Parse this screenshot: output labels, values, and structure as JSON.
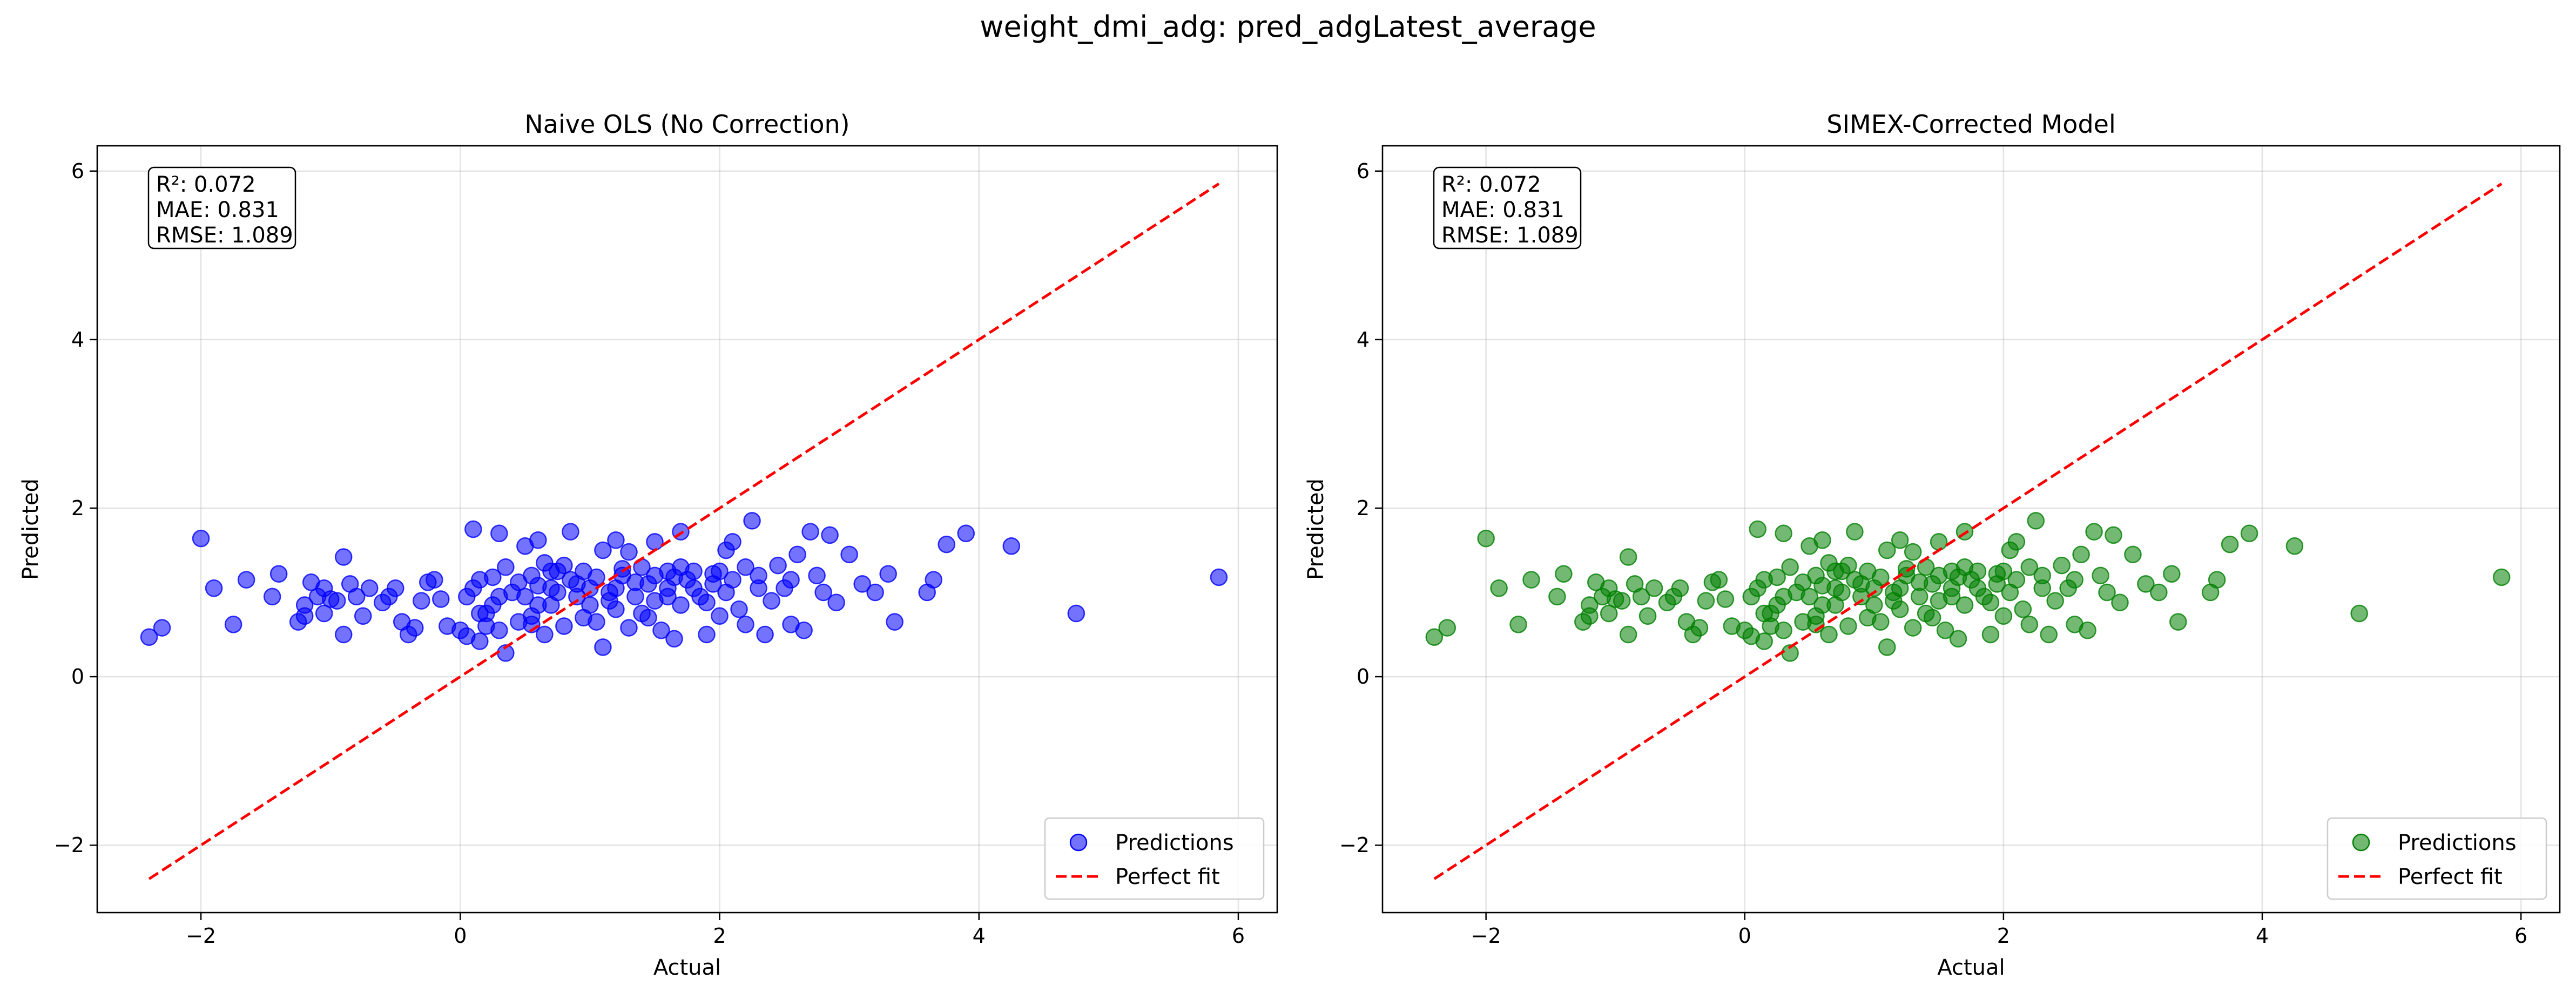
{
  "figure": {
    "suptitle": "weight_dmi_adg: pred_adgLatest_average"
  },
  "chart_data": [
    {
      "type": "scatter",
      "title": "Naive OLS (No Correction)",
      "xlabel": "Actual",
      "ylabel": "Predicted",
      "xlim": [
        -2.8,
        6.3
      ],
      "ylim": [
        -2.8,
        6.3
      ],
      "xticks": [
        -2,
        0,
        2,
        4,
        6
      ],
      "yticks": [
        -2,
        0,
        2,
        4,
        6
      ],
      "grid": true,
      "legend_position": "lower-right",
      "stats": [
        "R²: 0.072",
        "MAE: 0.831",
        "RMSE: 1.089"
      ],
      "series": [
        {
          "name": "Predictions",
          "kind": "points",
          "color": "#0000ff",
          "opacity": 0.55,
          "points": "@shared_points"
        },
        {
          "name": "Perfect fit",
          "kind": "line",
          "style": "dashed",
          "color": "#ff0000",
          "x": [
            -2.4,
            5.85
          ],
          "y": [
            -2.4,
            5.85
          ]
        }
      ]
    },
    {
      "type": "scatter",
      "title": "SIMEX-Corrected Model",
      "xlabel": "Actual",
      "ylabel": "Predicted",
      "xlim": [
        -2.8,
        6.3
      ],
      "ylim": [
        -2.8,
        6.3
      ],
      "xticks": [
        -2,
        0,
        2,
        4,
        6
      ],
      "yticks": [
        -2,
        0,
        2,
        4,
        6
      ],
      "grid": true,
      "legend_position": "lower-right",
      "stats": [
        "R²: 0.072",
        "MAE: 0.831",
        "RMSE: 1.089"
      ],
      "series": [
        {
          "name": "Predictions",
          "kind": "points",
          "color": "#008000",
          "opacity": 0.55,
          "points": "@shared_points"
        },
        {
          "name": "Perfect fit",
          "kind": "line",
          "style": "dashed",
          "color": "#ff0000",
          "x": [
            -2.4,
            5.85
          ],
          "y": [
            -2.4,
            5.85
          ]
        }
      ]
    }
  ],
  "shared_points": [
    [
      -2.4,
      0.47
    ],
    [
      -2.3,
      0.58
    ],
    [
      -2.0,
      1.64
    ],
    [
      -1.9,
      1.05
    ],
    [
      -1.75,
      0.62
    ],
    [
      -1.65,
      1.15
    ],
    [
      -1.45,
      0.95
    ],
    [
      -1.4,
      1.22
    ],
    [
      -1.25,
      0.65
    ],
    [
      -1.2,
      0.72
    ],
    [
      -1.2,
      0.85
    ],
    [
      -1.15,
      1.12
    ],
    [
      -1.1,
      0.95
    ],
    [
      -1.05,
      1.05
    ],
    [
      -1.05,
      0.75
    ],
    [
      -1.0,
      0.92
    ],
    [
      -0.95,
      0.9
    ],
    [
      -0.9,
      1.42
    ],
    [
      -0.9,
      0.5
    ],
    [
      -0.85,
      1.1
    ],
    [
      -0.8,
      0.95
    ],
    [
      -0.75,
      0.72
    ],
    [
      -0.7,
      1.05
    ],
    [
      -0.6,
      0.88
    ],
    [
      -0.55,
      0.95
    ],
    [
      -0.5,
      1.05
    ],
    [
      -0.45,
      0.65
    ],
    [
      -0.4,
      0.5
    ],
    [
      -0.35,
      0.58
    ],
    [
      -0.3,
      0.9
    ],
    [
      -0.25,
      1.12
    ],
    [
      -0.2,
      1.15
    ],
    [
      -0.15,
      0.92
    ],
    [
      -0.1,
      0.6
    ],
    [
      0.0,
      0.55
    ],
    [
      0.05,
      0.48
    ],
    [
      0.05,
      0.95
    ],
    [
      0.1,
      1.75
    ],
    [
      0.1,
      1.05
    ],
    [
      0.15,
      0.75
    ],
    [
      0.15,
      0.42
    ],
    [
      0.2,
      0.6
    ],
    [
      0.25,
      1.18
    ],
    [
      0.25,
      0.85
    ],
    [
      0.3,
      1.7
    ],
    [
      0.3,
      0.55
    ],
    [
      0.35,
      0.28
    ],
    [
      0.4,
      1.0
    ],
    [
      0.45,
      0.65
    ],
    [
      0.5,
      1.55
    ],
    [
      0.5,
      0.95
    ],
    [
      0.55,
      1.2
    ],
    [
      0.55,
      0.72
    ],
    [
      0.6,
      1.62
    ],
    [
      0.6,
      0.85
    ],
    [
      0.65,
      1.35
    ],
    [
      0.65,
      0.5
    ],
    [
      0.7,
      1.05
    ],
    [
      0.7,
      0.85
    ],
    [
      0.75,
      1.25
    ],
    [
      0.8,
      0.6
    ],
    [
      0.85,
      1.72
    ],
    [
      0.85,
      1.15
    ],
    [
      0.9,
      0.95
    ],
    [
      0.95,
      1.25
    ],
    [
      1.0,
      0.85
    ],
    [
      1.0,
      1.05
    ],
    [
      1.05,
      0.65
    ],
    [
      1.1,
      0.35
    ],
    [
      1.1,
      1.5
    ],
    [
      1.15,
      1.0
    ],
    [
      1.2,
      1.62
    ],
    [
      1.2,
      0.8
    ],
    [
      1.25,
      1.2
    ],
    [
      1.3,
      1.48
    ],
    [
      1.3,
      0.58
    ],
    [
      1.35,
      0.95
    ],
    [
      1.4,
      1.3
    ],
    [
      1.4,
      0.75
    ],
    [
      1.45,
      1.1
    ],
    [
      1.5,
      1.6
    ],
    [
      1.5,
      0.9
    ],
    [
      1.55,
      0.55
    ],
    [
      1.6,
      1.25
    ],
    [
      1.6,
      1.05
    ],
    [
      1.65,
      0.45
    ],
    [
      1.7,
      1.72
    ],
    [
      1.7,
      0.85
    ],
    [
      1.75,
      1.15
    ],
    [
      1.8,
      1.25
    ],
    [
      1.85,
      0.95
    ],
    [
      1.9,
      0.5
    ],
    [
      1.95,
      1.1
    ],
    [
      2.0,
      1.25
    ],
    [
      2.0,
      0.72
    ],
    [
      2.05,
      1.5
    ],
    [
      2.1,
      1.6
    ],
    [
      2.15,
      0.8
    ],
    [
      2.2,
      0.62
    ],
    [
      2.25,
      1.85
    ],
    [
      2.3,
      1.2
    ],
    [
      2.35,
      0.5
    ],
    [
      2.4,
      0.9
    ],
    [
      2.45,
      1.32
    ],
    [
      2.5,
      1.05
    ],
    [
      2.55,
      0.62
    ],
    [
      2.6,
      1.45
    ],
    [
      2.65,
      0.55
    ],
    [
      2.7,
      1.72
    ],
    [
      2.75,
      1.2
    ],
    [
      2.8,
      1.0
    ],
    [
      2.85,
      1.68
    ],
    [
      2.9,
      0.88
    ],
    [
      3.0,
      1.45
    ],
    [
      3.1,
      1.1
    ],
    [
      3.2,
      1.0
    ],
    [
      3.3,
      1.22
    ],
    [
      3.35,
      0.65
    ],
    [
      3.6,
      1.0
    ],
    [
      3.65,
      1.15
    ],
    [
      3.75,
      1.57
    ],
    [
      3.9,
      1.7
    ],
    [
      4.25,
      1.55
    ],
    [
      4.75,
      0.75
    ],
    [
      5.85,
      1.18
    ],
    [
      0.15,
      1.15
    ],
    [
      0.3,
      0.95
    ],
    [
      0.45,
      1.12
    ],
    [
      0.6,
      1.08
    ],
    [
      0.75,
      1.0
    ],
    [
      0.9,
      1.1
    ],
    [
      1.05,
      1.18
    ],
    [
      1.2,
      1.05
    ],
    [
      1.35,
      1.12
    ],
    [
      1.5,
      1.2
    ],
    [
      1.65,
      1.18
    ],
    [
      1.8,
      1.05
    ],
    [
      1.95,
      1.22
    ],
    [
      2.1,
      1.15
    ],
    [
      0.35,
      1.3
    ],
    [
      0.8,
      1.32
    ],
    [
      1.25,
      1.28
    ],
    [
      1.7,
      1.3
    ],
    [
      2.2,
      1.3
    ],
    [
      0.2,
      0.75
    ],
    [
      0.55,
      0.62
    ],
    [
      0.95,
      0.7
    ],
    [
      1.45,
      0.7
    ],
    [
      1.9,
      0.88
    ],
    [
      2.3,
      1.05
    ],
    [
      2.55,
      1.15
    ],
    [
      0.7,
      1.25
    ],
    [
      1.15,
      0.9
    ],
    [
      1.6,
      0.95
    ],
    [
      2.05,
      1.0
    ]
  ],
  "legend": {
    "items": [
      {
        "label": "Predictions",
        "marker": "circle"
      },
      {
        "label": "Perfect fit",
        "marker": "dashed-line"
      }
    ]
  }
}
